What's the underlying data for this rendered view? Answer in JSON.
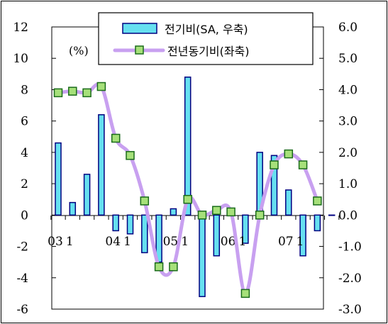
{
  "chart_data": {
    "type": "bar",
    "quarters": [
      "03Q1",
      "03Q2",
      "03Q3",
      "03Q4",
      "04Q1",
      "04Q2",
      "04Q3",
      "04Q4",
      "05Q1",
      "05Q2",
      "05Q3",
      "05Q4",
      "06Q1",
      "06Q2",
      "06Q3",
      "06Q4",
      "07Q1",
      "07Q2",
      "07Q3",
      "07Q4"
    ],
    "x_tick_labels": [
      {
        "index": 0,
        "text": "03"
      },
      {
        "index": 1,
        "text": "1"
      },
      {
        "index": 4,
        "text": "04"
      },
      {
        "index": 5,
        "text": "1"
      },
      {
        "index": 8,
        "text": "05"
      },
      {
        "index": 9,
        "text": "1"
      },
      {
        "index": 12,
        "text": "06"
      },
      {
        "index": 13,
        "text": "1"
      },
      {
        "index": 16,
        "text": "07"
      },
      {
        "index": 17,
        "text": "1"
      }
    ],
    "series": [
      {
        "name": "전기비(SA, 우축)",
        "kind": "bar",
        "axis": "right",
        "values": [
          2.3,
          0.4,
          1.3,
          3.2,
          -0.5,
          -0.6,
          -1.2,
          -1.5,
          0.2,
          4.4,
          -2.6,
          -1.3,
          0.0,
          -0.9,
          2.0,
          1.9,
          0.8,
          -1.3,
          -0.5,
          0.0
        ]
      },
      {
        "name": "전년동기비(좌축)",
        "kind": "line",
        "axis": "left",
        "values": [
          7.8,
          7.9,
          7.8,
          8.2,
          4.9,
          3.8,
          0.9,
          -3.3,
          -3.3,
          1.0,
          0.0,
          0.3,
          0.2,
          -5.0,
          0.0,
          3.2,
          3.9,
          3.2,
          0.9,
          null
        ]
      }
    ],
    "left_axis": {
      "ylim": [
        -6,
        12
      ],
      "ticks": [
        "12",
        "10",
        "8",
        "6",
        "4",
        "2",
        "0",
        "-2",
        "-4",
        "-6"
      ],
      "unit_label": "(%)"
    },
    "right_axis": {
      "ylim": [
        -3.0,
        6.0
      ],
      "ticks": [
        "6.0",
        "5.0",
        "4.0",
        "3.0",
        "2.0",
        "1.0",
        "0.0",
        "-1.0",
        "-2.0",
        "-3.0"
      ]
    },
    "legend_position": "top-center",
    "colors": {
      "bar_fill": "#66e0f0",
      "bar_stroke": "#000080",
      "line": "#c8a0f0",
      "marker_fill": "#a6e07a",
      "marker_stroke": "#1a6b1a"
    },
    "grid": false
  }
}
